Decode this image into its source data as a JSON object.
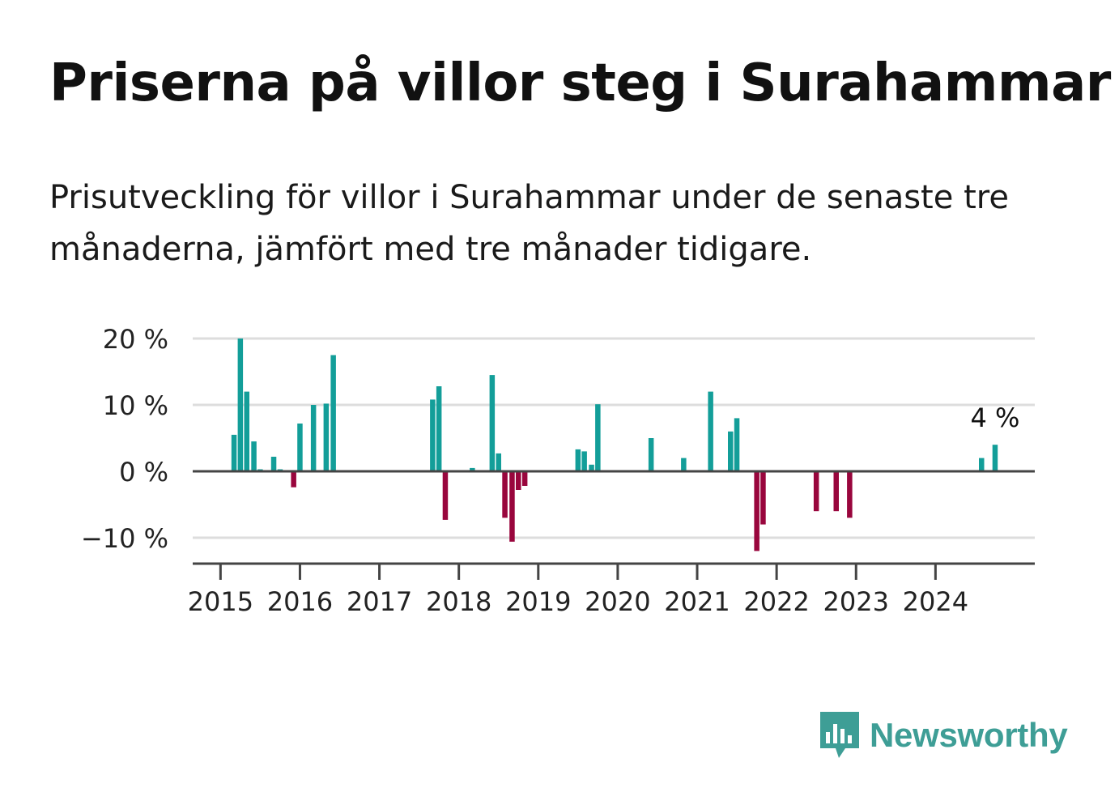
{
  "header": {
    "title": "Priserna på villor steg i Surahammar",
    "subtitle": "Prisutveckling för villor i Surahammar under de senaste tre månaderna, jämfört med tre månader tidigare."
  },
  "brand": {
    "name": "Newsworthy",
    "color": "#3e9e96"
  },
  "colors": {
    "positive": "#139e99",
    "negative": "#99063d",
    "grid": "#dddddd",
    "axis": "#444444"
  },
  "chart_data": {
    "type": "bar",
    "title": "",
    "xlabel": "",
    "ylabel": "",
    "unit": "%",
    "ylim": [
      -14,
      20
    ],
    "xlim": [
      2014.65,
      2025.25
    ],
    "y_ticks": [
      20,
      10,
      0,
      -10
    ],
    "y_tick_labels": [
      "20 %",
      "10 %",
      "0 %",
      "−10 %"
    ],
    "x_ticks": [
      2015,
      2016,
      2017,
      2018,
      2019,
      2020,
      2021,
      2022,
      2023,
      2024
    ],
    "x_tick_labels": [
      "2015",
      "2016",
      "2017",
      "2018",
      "2019",
      "2020",
      "2021",
      "2022",
      "2023",
      "2024"
    ],
    "grid": true,
    "annotation": {
      "label": "4 %",
      "x": 2024.75,
      "y": 4
    },
    "x": [
      2015.17,
      2015.25,
      2015.33,
      2015.42,
      2015.5,
      2015.67,
      2015.75,
      2015.92,
      2016.0,
      2016.17,
      2016.33,
      2016.42,
      2017.67,
      2017.75,
      2017.83,
      2018.17,
      2018.42,
      2018.5,
      2018.58,
      2018.67,
      2018.75,
      2018.83,
      2019.5,
      2019.58,
      2019.67,
      2019.75,
      2020.42,
      2020.83,
      2021.17,
      2021.42,
      2021.5,
      2021.75,
      2021.83,
      2022.5,
      2022.75,
      2022.92,
      2024.58,
      2024.75
    ],
    "values": [
      5.5,
      20,
      12,
      4.5,
      0.3,
      2.2,
      0.3,
      -2.4,
      7.2,
      10,
      10.2,
      17.5,
      10.8,
      12.8,
      -7.3,
      0.5,
      14.5,
      2.7,
      -7,
      -10.6,
      -2.8,
      -2.2,
      3.3,
      3,
      1,
      10.1,
      5,
      2,
      12,
      6,
      8,
      -12,
      -8,
      -6,
      -6,
      -7,
      2,
      4
    ]
  }
}
